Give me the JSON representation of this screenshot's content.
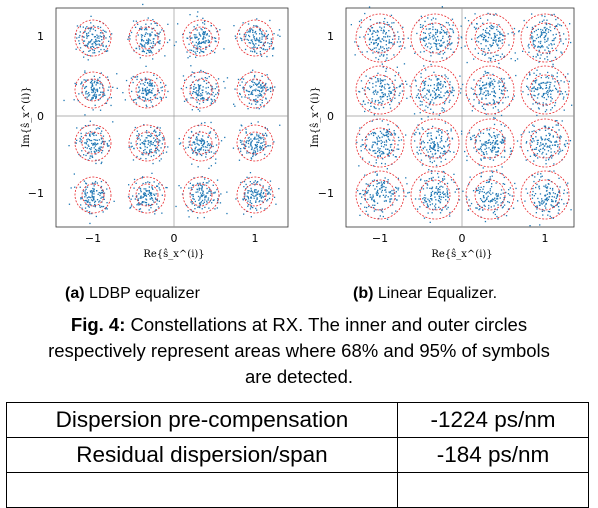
{
  "figure": {
    "plots": [
      {
        "id": "a",
        "xlabel": "Re{ŝ_x^(i)}",
        "ylabel": "Im{ŝ_x^(i)}",
        "xticks": [
          "−1",
          "0",
          "1"
        ],
        "yticks": [
          "1",
          "0",
          "−1"
        ],
        "marker_color": "#1f77b4",
        "circle_color": "#e8282c"
      },
      {
        "id": "b",
        "xlabel": "Re{ŝ_x^(i)}",
        "ylabel": "Im{ŝ_x^(i)}",
        "xticks": [
          "−1",
          "0",
          "1"
        ],
        "yticks": [
          "1",
          "0",
          "−1"
        ],
        "marker_color": "#1f77b4",
        "circle_color": "#e8282c"
      }
    ],
    "subcaptions": [
      {
        "tag": "(a)",
        "text": "LDBP equalizer"
      },
      {
        "tag": "(b)",
        "text": "Linear Equalizer."
      }
    ],
    "caption": {
      "tag": "Fig. 4:",
      "line1": "Constellations at RX. The inner and outer circles",
      "line2": "respectively represent areas where 68% and 95% of symbols",
      "line3": "are detected."
    }
  },
  "table": {
    "rows": [
      {
        "param": "Dispersion pre-compensation",
        "value": "-1224 ps/nm"
      },
      {
        "param": "Residual dispersion/span",
        "value": "-184 ps/nm"
      }
    ]
  }
}
